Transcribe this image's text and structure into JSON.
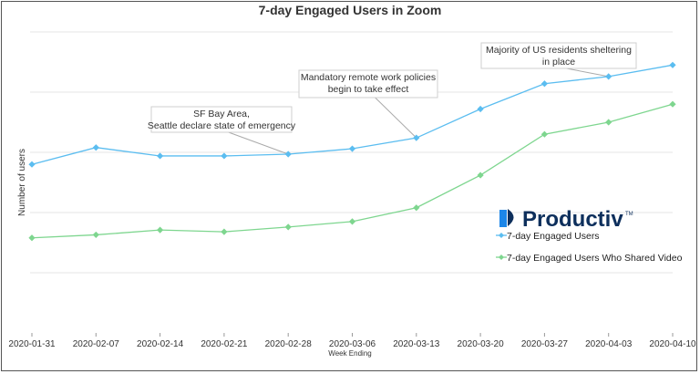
{
  "chart_data": {
    "type": "line",
    "title": "7-day Engaged Users in Zoom",
    "xlabel": "Week Ending",
    "ylabel": "Number of users",
    "categories": [
      "2020-01-31",
      "2020-02-07",
      "2020-02-14",
      "2020-02-21",
      "2020-02-28",
      "2020-03-06",
      "2020-03-13",
      "2020-03-20",
      "2020-03-27",
      "2020-04-03",
      "2020-04-10"
    ],
    "ylim": [
      0,
      5
    ],
    "grid": true,
    "series": [
      {
        "name": "7-day Engaged Users",
        "color": "#5bbdf0",
        "values": [
          2.8,
          3.08,
          2.94,
          2.94,
          2.97,
          3.06,
          3.24,
          3.72,
          4.14,
          4.26,
          4.45
        ]
      },
      {
        "name": "7-day Engaged Users Who Shared Video",
        "color": "#7ed68f",
        "values": [
          1.58,
          1.63,
          1.71,
          1.68,
          1.76,
          1.85,
          2.08,
          2.62,
          3.3,
          3.5,
          3.8
        ]
      }
    ],
    "annotations": [
      {
        "lines": [
          "SF Bay Area,",
          "Seattle declare state of emergency"
        ],
        "category_index": 4,
        "series_index": 0
      },
      {
        "lines": [
          "Mandatory remote work policies",
          "begin to take effect"
        ],
        "category_index": 6,
        "series_index": 0
      },
      {
        "lines": [
          "Majority of US residents sheltering",
          "in place"
        ],
        "category_index": 9,
        "series_index": 0
      }
    ],
    "legend_position": "right"
  },
  "brand": {
    "name": "Productiv",
    "tm": "TM"
  }
}
